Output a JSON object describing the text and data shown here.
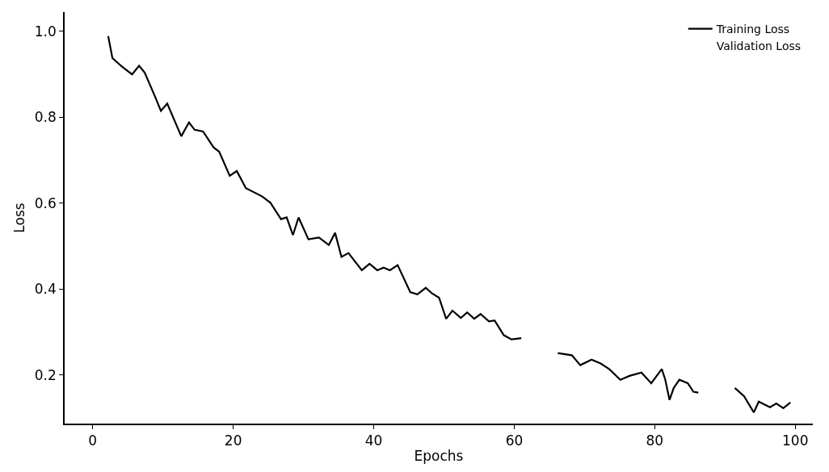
{
  "chart_data": {
    "type": "line",
    "xlabel": "Epochs",
    "ylabel": "Loss",
    "xlim": [
      -4,
      102.5
    ],
    "xticks": [
      0,
      20,
      40,
      60,
      80,
      100
    ],
    "ylim": [
      0.087,
      1.045
    ],
    "yticks": [
      0.2,
      0.4,
      0.6,
      0.8,
      {
        "value": 1.0,
        "label": "1.0"
      }
    ],
    "legend": "top right",
    "marker": "none",
    "line_style": "solid",
    "series": [
      {
        "name": "Training Loss",
        "color": "#000000",
        "x": [
          2.2,
          2.8,
          4.1,
          5.6,
          6.6,
          7.4,
          8.9,
          9.7,
          10.6,
          12.6,
          13.7,
          14.5,
          15.7,
          17.2,
          18.0,
          19.5,
          20.5,
          21.8,
          24.1,
          25.3,
          26.8,
          27.6,
          28.5,
          29.3,
          30.7,
          32.2,
          33.6,
          34.5,
          35.4,
          36.4,
          38.3,
          39.4,
          40.5,
          41.4,
          42.3,
          43.4,
          45.2,
          46.2,
          47.4,
          48.3,
          49.3,
          50.3,
          51.2,
          52.4,
          53.3,
          54.3,
          55.2,
          56.4,
          57.2,
          58.5,
          59.6,
          61.0,
          63.5,
          66.2,
          68.2,
          69.4,
          71.0,
          72.3,
          73.5,
          75.1,
          76.4,
          78.1,
          79.5,
          81.0,
          81.5,
          82.1,
          82.7,
          83.5,
          84.7,
          85.5,
          86.2,
          89.0,
          91.4,
          92.7,
          94.1,
          94.8,
          96.4,
          97.3,
          98.3,
          99.3
        ],
        "values": [
          0.989,
          0.938,
          0.919,
          0.9,
          0.92,
          0.904,
          0.847,
          0.815,
          0.832,
          0.756,
          0.788,
          0.771,
          0.767,
          0.73,
          0.72,
          0.664,
          0.675,
          0.635,
          0.616,
          0.601,
          0.563,
          0.567,
          0.526,
          0.567,
          0.516,
          0.52,
          0.503,
          0.531,
          0.475,
          0.484,
          0.444,
          0.459,
          0.444,
          0.45,
          0.444,
          0.456,
          0.393,
          0.388,
          0.403,
          0.39,
          0.38,
          0.331,
          0.35,
          0.333,
          0.346,
          0.331,
          0.342,
          0.325,
          0.327,
          0.293,
          0.283,
          0.286,
          null,
          0.251,
          0.246,
          0.223,
          0.236,
          0.227,
          0.214,
          0.189,
          0.198,
          0.206,
          0.181,
          0.214,
          0.189,
          0.142,
          0.17,
          0.189,
          0.181,
          0.161,
          0.159,
          null,
          0.17,
          0.151,
          0.113,
          0.138,
          0.125,
          0.134,
          0.123,
          0.136
        ]
      },
      {
        "name": "Validation Loss"
      }
    ]
  }
}
